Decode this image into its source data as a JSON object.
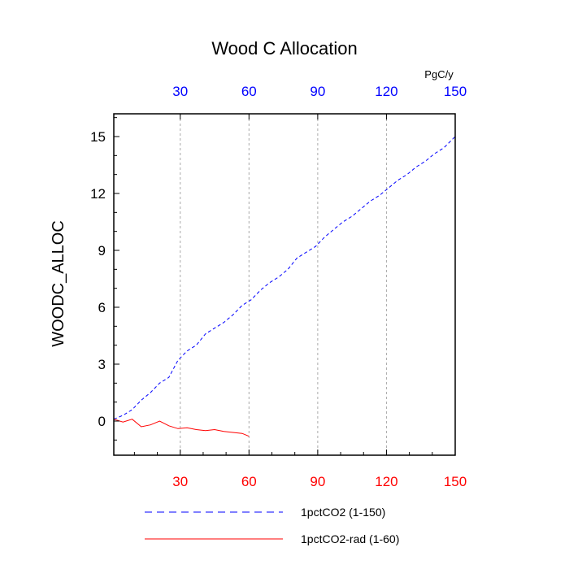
{
  "chart_data": {
    "type": "line",
    "title": "Wood C Allocation",
    "units": "PgC/y",
    "ylabel": "WOODC_ALLOC",
    "xlim": [
      1,
      150
    ],
    "ylim": [
      -1.8,
      16.2
    ],
    "x_ticks_bottom": [
      30,
      60,
      90,
      120,
      150
    ],
    "x_ticks_top": [
      30,
      60,
      90,
      120,
      150
    ],
    "y_ticks": [
      0,
      3,
      6,
      9,
      12,
      15
    ],
    "grid": "vertical dashed",
    "colors": {
      "series1": "#0000ff",
      "series2": "#ff0000",
      "bottom_ticks": "#ff0000",
      "top_ticks": "#0000ff"
    },
    "legend_position": "bottom",
    "series": [
      {
        "name": "1pctCO2 (1-150)",
        "style": "dashed",
        "color": "#0000ff",
        "x": [
          1,
          5,
          9,
          13,
          17,
          21,
          25,
          29,
          33,
          37,
          41,
          45,
          49,
          53,
          57,
          61,
          65,
          69,
          73,
          77,
          81,
          85,
          89,
          93,
          97,
          101,
          105,
          109,
          113,
          117,
          121,
          125,
          129,
          133,
          137,
          141,
          145,
          150
        ],
        "y": [
          0.1,
          0.3,
          0.6,
          1.1,
          1.5,
          2.0,
          2.3,
          3.2,
          3.7,
          4.0,
          4.6,
          4.9,
          5.2,
          5.6,
          6.1,
          6.4,
          6.9,
          7.3,
          7.6,
          8.0,
          8.6,
          8.9,
          9.2,
          9.7,
          10.1,
          10.5,
          10.8,
          11.2,
          11.6,
          11.9,
          12.3,
          12.7,
          13.0,
          13.4,
          13.7,
          14.1,
          14.4,
          15.0
        ]
      },
      {
        "name": "1pctCO2-rad (1-60)",
        "style": "solid",
        "color": "#ff0000",
        "x": [
          1,
          5,
          9,
          13,
          17,
          21,
          25,
          29,
          33,
          37,
          41,
          45,
          49,
          53,
          57,
          60
        ],
        "y": [
          0.1,
          -0.05,
          0.1,
          -0.3,
          -0.2,
          0.0,
          -0.25,
          -0.4,
          -0.35,
          -0.45,
          -0.5,
          -0.45,
          -0.55,
          -0.6,
          -0.65,
          -0.8
        ]
      }
    ]
  }
}
